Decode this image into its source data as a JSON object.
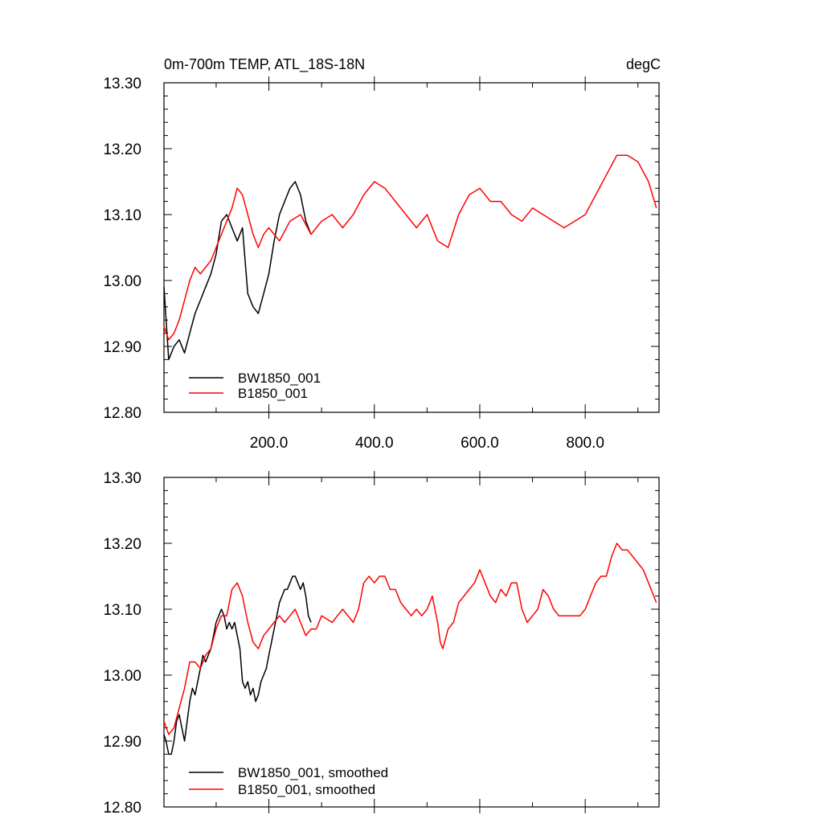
{
  "chart_data": [
    {
      "type": "line",
      "title_left": "0m-700m TEMP, ATL_18S-18N",
      "title_right": "degC",
      "xlim": [
        1,
        940
      ],
      "ylim": [
        12.8,
        13.3
      ],
      "x_ticks": [
        200,
        400,
        600,
        800
      ],
      "x_tick_labels": [
        "200.0",
        "400.0",
        "600.0",
        "800.0"
      ],
      "y_ticks": [
        12.8,
        12.9,
        13.0,
        13.1,
        13.2,
        13.3
      ],
      "y_tick_labels": [
        "12.80",
        "12.90",
        "13.00",
        "13.10",
        "13.20",
        "13.30"
      ],
      "legend_position": "bottom-left",
      "colors": {
        "BW1850_001": "#000000",
        "B1850_001": "#ff0000"
      },
      "series": [
        {
          "name": "BW1850_001",
          "color": "#000000",
          "x": [
            1,
            10,
            20,
            30,
            40,
            50,
            60,
            70,
            80,
            90,
            100,
            110,
            120,
            130,
            140,
            150,
            160,
            170,
            180,
            190,
            200,
            210,
            220,
            230,
            240,
            250,
            260,
            270,
            280
          ],
          "y": [
            12.99,
            12.88,
            12.9,
            12.91,
            12.89,
            12.92,
            12.95,
            12.97,
            12.99,
            13.01,
            13.04,
            13.09,
            13.1,
            13.08,
            13.06,
            13.08,
            12.98,
            12.96,
            12.95,
            12.98,
            13.01,
            13.06,
            13.1,
            13.12,
            13.14,
            13.15,
            13.13,
            13.09,
            13.07
          ]
        },
        {
          "name": "B1850_001",
          "color": "#ff0000",
          "x": [
            1,
            10,
            20,
            30,
            40,
            50,
            60,
            70,
            80,
            90,
            100,
            110,
            120,
            130,
            140,
            150,
            160,
            170,
            180,
            190,
            200,
            220,
            240,
            260,
            280,
            300,
            320,
            340,
            360,
            380,
            400,
            420,
            440,
            460,
            480,
            500,
            520,
            540,
            560,
            580,
            600,
            620,
            640,
            660,
            680,
            700,
            720,
            740,
            760,
            780,
            800,
            820,
            840,
            860,
            880,
            900,
            920,
            935
          ],
          "y": [
            12.93,
            12.91,
            12.92,
            12.94,
            12.97,
            13.0,
            13.02,
            13.01,
            13.02,
            13.03,
            13.05,
            13.07,
            13.09,
            13.11,
            13.14,
            13.13,
            13.1,
            13.07,
            13.05,
            13.07,
            13.08,
            13.06,
            13.09,
            13.1,
            13.07,
            13.09,
            13.1,
            13.08,
            13.1,
            13.13,
            13.15,
            13.14,
            13.12,
            13.1,
            13.08,
            13.1,
            13.06,
            13.05,
            13.1,
            13.13,
            13.14,
            13.12,
            13.12,
            13.1,
            13.09,
            13.11,
            13.1,
            13.09,
            13.08,
            13.09,
            13.1,
            13.13,
            13.16,
            13.19,
            13.19,
            13.18,
            13.15,
            13.11
          ]
        }
      ]
    },
    {
      "type": "line",
      "xlim": [
        1,
        940
      ],
      "ylim": [
        12.8,
        13.3
      ],
      "y_ticks": [
        12.8,
        12.9,
        13.0,
        13.1,
        13.2,
        13.3
      ],
      "y_tick_labels": [
        "12.80",
        "12.90",
        "13.00",
        "13.10",
        "13.20",
        "13.30"
      ],
      "legend_position": "bottom-left",
      "series": [
        {
          "name": "BW1850_001, smoothed",
          "color": "#000000",
          "x": [
            1,
            5,
            10,
            15,
            20,
            25,
            30,
            35,
            40,
            45,
            50,
            55,
            60,
            65,
            70,
            75,
            80,
            85,
            90,
            95,
            100,
            105,
            110,
            115,
            120,
            125,
            130,
            135,
            140,
            145,
            150,
            155,
            160,
            165,
            170,
            175,
            180,
            185,
            190,
            195,
            200,
            205,
            210,
            215,
            220,
            225,
            230,
            235,
            240,
            245,
            250,
            255,
            260,
            265,
            270,
            275,
            280
          ],
          "y": [
            12.91,
            12.9,
            12.88,
            12.88,
            12.9,
            12.93,
            12.94,
            12.92,
            12.9,
            12.93,
            12.96,
            12.98,
            12.97,
            12.99,
            13.01,
            13.03,
            13.02,
            13.03,
            13.04,
            13.06,
            13.08,
            13.09,
            13.1,
            13.09,
            13.07,
            13.08,
            13.07,
            13.08,
            13.06,
            13.04,
            12.99,
            12.98,
            12.99,
            12.97,
            12.98,
            12.96,
            12.97,
            12.99,
            13.0,
            13.01,
            13.03,
            13.05,
            13.07,
            13.09,
            13.11,
            13.12,
            13.13,
            13.13,
            13.14,
            13.15,
            13.15,
            13.14,
            13.13,
            13.14,
            13.12,
            13.09,
            13.08
          ]
        },
        {
          "name": "B1850_001, smoothed",
          "color": "#ff0000",
          "x": [
            1,
            10,
            20,
            30,
            40,
            50,
            60,
            70,
            80,
            90,
            100,
            110,
            120,
            130,
            140,
            150,
            160,
            170,
            180,
            190,
            200,
            210,
            220,
            230,
            240,
            250,
            260,
            270,
            280,
            290,
            300,
            320,
            340,
            360,
            370,
            380,
            390,
            400,
            410,
            420,
            430,
            440,
            450,
            460,
            470,
            480,
            490,
            500,
            510,
            520,
            525,
            530,
            540,
            550,
            560,
            570,
            580,
            590,
            600,
            610,
            620,
            630,
            640,
            650,
            660,
            670,
            680,
            690,
            700,
            710,
            720,
            730,
            740,
            750,
            760,
            770,
            780,
            790,
            800,
            810,
            820,
            830,
            840,
            850,
            860,
            870,
            880,
            890,
            900,
            910,
            920,
            930,
            935
          ],
          "y": [
            12.93,
            12.91,
            12.92,
            12.95,
            12.98,
            13.02,
            13.02,
            13.01,
            13.03,
            13.04,
            13.07,
            13.09,
            13.09,
            13.13,
            13.14,
            13.12,
            13.08,
            13.05,
            13.04,
            13.06,
            13.07,
            13.08,
            13.09,
            13.08,
            13.09,
            13.1,
            13.08,
            13.06,
            13.07,
            13.07,
            13.09,
            13.08,
            13.1,
            13.08,
            13.1,
            13.14,
            13.15,
            13.14,
            13.15,
            13.15,
            13.13,
            13.13,
            13.11,
            13.1,
            13.09,
            13.1,
            13.09,
            13.1,
            13.12,
            13.08,
            13.05,
            13.04,
            13.07,
            13.08,
            13.11,
            13.12,
            13.13,
            13.14,
            13.16,
            13.14,
            13.12,
            13.11,
            13.13,
            13.12,
            13.14,
            13.14,
            13.1,
            13.08,
            13.09,
            13.1,
            13.13,
            13.12,
            13.1,
            13.09,
            13.09,
            13.09,
            13.09,
            13.09,
            13.1,
            13.12,
            13.14,
            13.15,
            13.15,
            13.18,
            13.2,
            13.19,
            13.19,
            13.18,
            13.17,
            13.16,
            13.14,
            13.12,
            13.11
          ]
        }
      ]
    }
  ]
}
